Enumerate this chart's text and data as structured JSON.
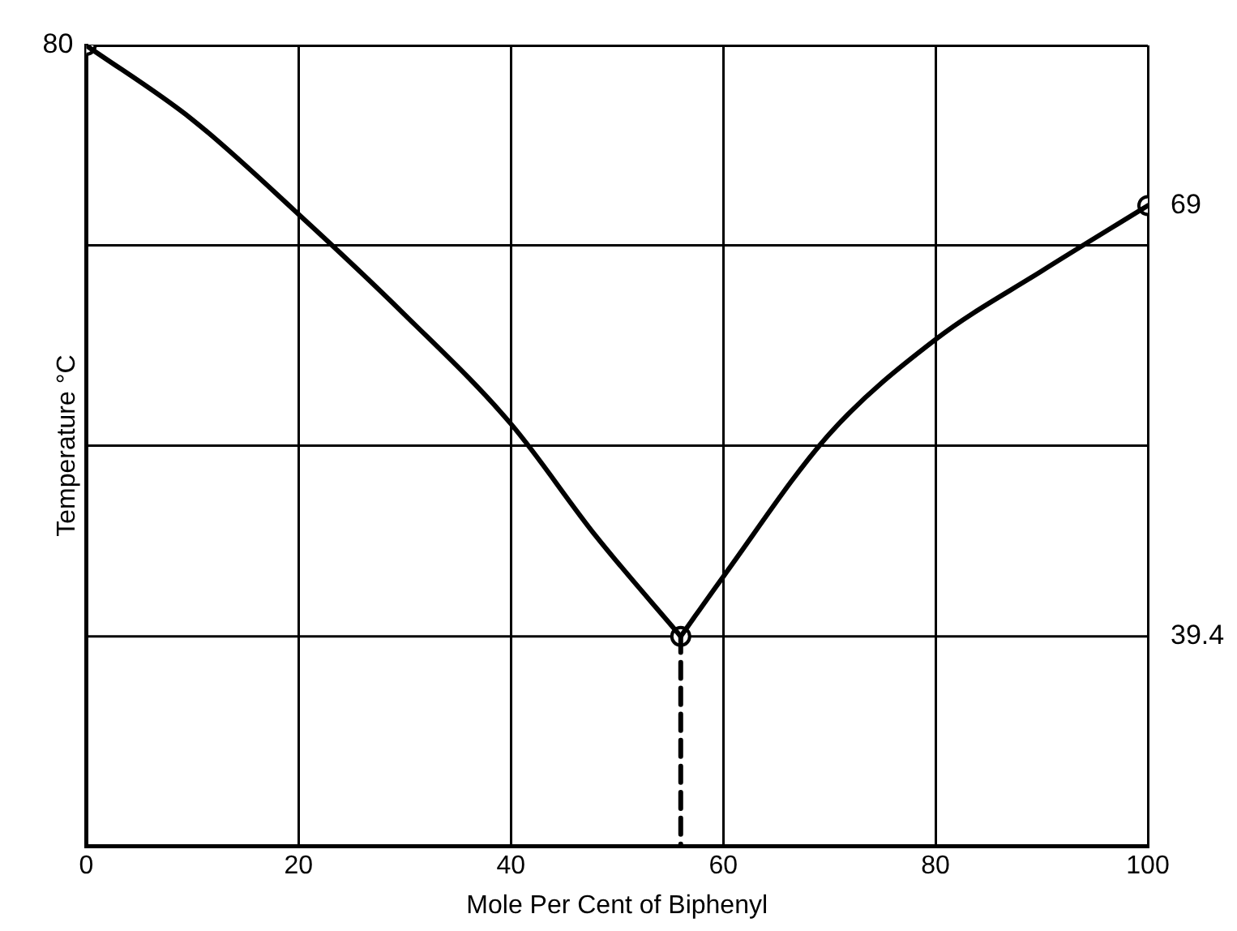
{
  "chart_data": {
    "type": "line",
    "xlabel": "Mole Per Cent of Biphenyl",
    "ylabel": "Temperature °C",
    "xlim": [
      0,
      100
    ],
    "xticks": [
      0,
      20,
      40,
      60,
      80,
      100
    ],
    "ylim": [
      25,
      80
    ],
    "yticks": [
      {
        "value": 25,
        "label": null
      },
      {
        "value": 52.5,
        "label": null
      },
      {
        "value": 66.25,
        "label": null
      },
      {
        "value": 80,
        "label": null
      }
    ],
    "tick_labels": "x",
    "grid": true,
    "legend": false,
    "ref_lines": [
      {
        "axis": "y",
        "value": 39.4,
        "label": "39.4",
        "color": "#000000",
        "line_style": "solid"
      }
    ],
    "series": [
      {
        "color": "#000000",
        "marker": "none",
        "line_style": "solid",
        "x": [
          0,
          10,
          20,
          30,
          40,
          48,
          56
        ],
        "values": [
          80,
          74.9,
          68.4,
          61.5,
          54.0,
          46.3,
          39.4
        ]
      },
      {
        "color": "#000000",
        "marker": "none",
        "line_style": "solid",
        "x": [
          56,
          60,
          70,
          80,
          90,
          100
        ],
        "values": [
          39.4,
          43.5,
          53.3,
          59.8,
          64.5,
          69
        ]
      },
      {
        "color": "#000000",
        "marker": "none",
        "line_style": "dashed",
        "x": [
          56,
          56
        ],
        "values": [
          39.4,
          25
        ]
      },
      {
        "type": "scatter",
        "color": "#000000",
        "marker": "circle",
        "x": [
          0,
          56,
          100
        ],
        "values": [
          80,
          39.4,
          69
        ],
        "value_labels": [
          "80",
          null,
          "69"
        ]
      }
    ]
  }
}
